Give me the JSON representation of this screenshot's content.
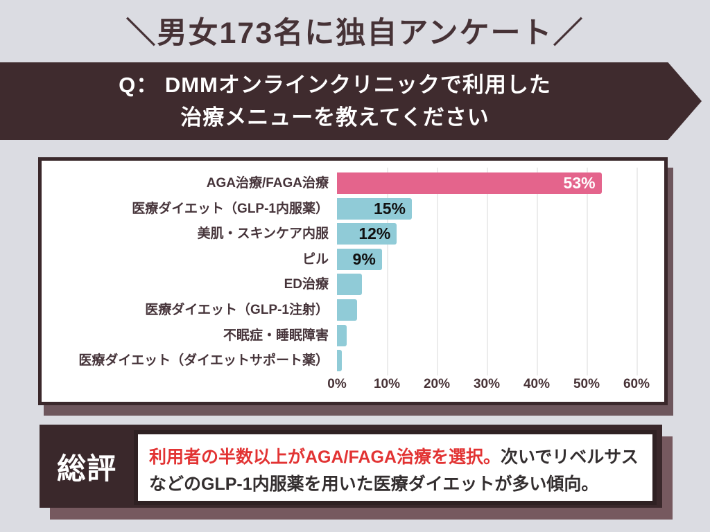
{
  "header": {
    "title": "＼男女173名に独自アンケート／",
    "question_line1": "Q： DMMオンラインクリニックで利用した",
    "question_line2": "治療メニューを教えてください"
  },
  "chart_data": {
    "type": "bar",
    "orientation": "horizontal",
    "title": "",
    "xlabel": "",
    "ylabel": "",
    "xlim": [
      0,
      60
    ],
    "grid": true,
    "xticks": [
      "0%",
      "10%",
      "20%",
      "30%",
      "40%",
      "50%",
      "60%"
    ],
    "categories": [
      "AGA治療/FAGA治療",
      "医療ダイエット（GLP-1内服薬）",
      "美肌・スキンケア内服",
      "ピル",
      "ED治療",
      "医療ダイエット（GLP-1注射）",
      "不眠症・睡眠障害",
      "医療ダイエット（ダイエットサポート薬）"
    ],
    "values": [
      53,
      15,
      12,
      9,
      5,
      4,
      2,
      1
    ],
    "value_labels": [
      "53%",
      "15%",
      "12%",
      "9%",
      "",
      "",
      "",
      ""
    ],
    "value_label_colors": [
      "#ffffff",
      "#111111",
      "#111111",
      "#111111",
      "",
      "",
      "",
      ""
    ],
    "bar_colors": [
      "#e4648c",
      "#90cbd7",
      "#90cbd7",
      "#90cbd7",
      "#90cbd7",
      "#90cbd7",
      "#90cbd7",
      "#90cbd7"
    ]
  },
  "summary": {
    "label": "総評",
    "highlight": "利用者の半数以上がAGA/FAGA治療を選択。",
    "rest_line1": "次いでリベルサス",
    "rest_line2": "などのGLP-1内服薬を用いた医療ダイエットが多い傾向。"
  },
  "colors": {
    "background": "#dbdce2",
    "dark_brown": "#3a282b",
    "banner": "#3f2b2e",
    "pink_bar": "#e4648c",
    "teal_bar": "#90cbd7",
    "highlight_red": "#e23333",
    "chart_shadow": "#6d565c",
    "summary_shadow": "#76595f"
  }
}
